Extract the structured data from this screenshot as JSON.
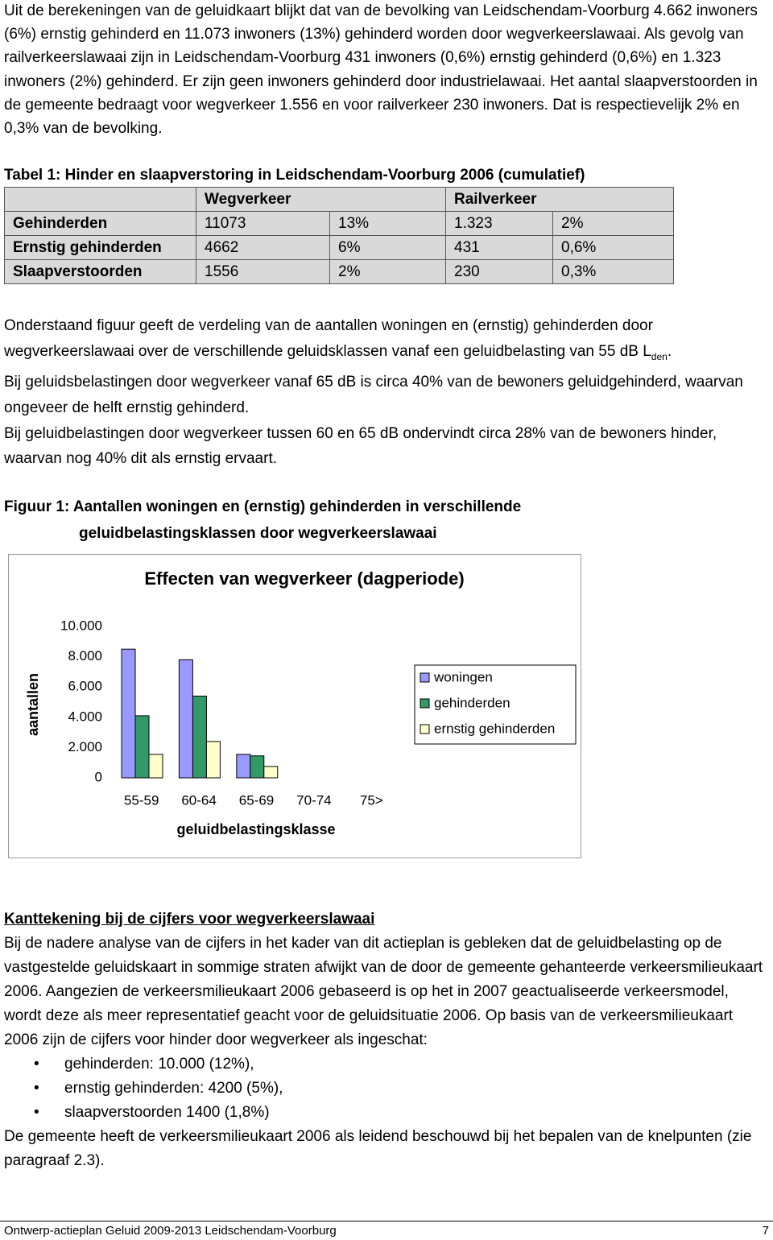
{
  "intro": "Uit de berekeningen van de geluidkaart blijkt dat van de bevolking van Leidschendam-Voorburg 4.662 inwoners (6%) ernstig gehinderd en 11.073 inwoners (13%) gehinderd worden door wegverkeerslawaai. Als gevolg van railverkeerslawaai zijn in Leidschendam-Voorburg 431 inwoners (0,6%) ernstig gehinderd (0,6%) en 1.323 inwoners (2%) gehinderd. Er zijn geen inwoners gehinderd door industrielawaai. Het aantal slaapverstoorden in de gemeente bedraagt voor wegverkeer 1.556 en voor railverkeer 230 inwoners. Dat is respectievelijk 2% en 0,3% van de bevolking.",
  "table": {
    "caption": "Tabel 1: Hinder en slaapverstoring in Leidschendam-Voorburg 2006 (cumulatief)",
    "header": [
      "Wegverkeer",
      "Railverkeer"
    ],
    "rows": [
      [
        "Gehinderden",
        "11073",
        "13%",
        "1.323",
        "2%"
      ],
      [
        "Ernstig gehinderden",
        "4662",
        "6%",
        "431",
        "0,6%"
      ],
      [
        "Slaapverstoorden",
        "1556",
        "2%",
        "230",
        "0,3%"
      ]
    ]
  },
  "description": {
    "text": "Onderstaand figuur geeft de verdeling van de aantallen woningen en (ernstig) gehinderden door wegverkeerslawaai over de verschillende geluidsklassen vanaf een geluidbelasting van 55 dB L",
    "subscript": "den",
    "end": ".",
    "paragraphs": [
      "Bij geluidsbelastingen door wegverkeer vanaf 65 dB is circa 40% van de bewoners geluidgehinderd, waarvan ongeveer de helft ernstig gehinderd.",
      "Bij geluidbelastingen door wegverkeer tussen 60 en 65 dB ondervindt circa 28% van de bewoners hinder, waarvan nog 40% dit als ernstig ervaart."
    ]
  },
  "figure_caption": [
    "Figuur 1: Aantallen woningen en (ernstig) gehinderden in verschillende",
    "geluidbelastingsklassen door wegverkeerslawaai"
  ],
  "chart_data": {
    "type": "bar",
    "title": "Effecten van wegverkeer (dagperiode)",
    "xlabel": "geluidbelastingsklasse",
    "ylabel": "aantallen",
    "categories": [
      "55-59",
      "60-64",
      "65-69",
      "70-74",
      "75>"
    ],
    "series": [
      {
        "name": "woningen",
        "color": "#9999ff",
        "values": [
          8500,
          7800,
          1550,
          0,
          0
        ]
      },
      {
        "name": "gehinderden",
        "color": "#339966",
        "values": [
          4100,
          5400,
          1450,
          0,
          0
        ]
      },
      {
        "name": "ernstig gehinderden",
        "color": "#ffffcc",
        "values": [
          1550,
          2400,
          750,
          0,
          0
        ]
      }
    ],
    "ylim": [
      0,
      10000
    ],
    "yticks": [
      0,
      {
        "value": 2000,
        "label": "2.000"
      },
      {
        "value": 4000,
        "label": "4.000"
      },
      {
        "value": 6000,
        "label": "6.000"
      },
      {
        "value": 8000,
        "label": "8.000"
      },
      {
        "value": 10000,
        "label": "10.000"
      }
    ],
    "grid": false,
    "legend": "right"
  },
  "note": {
    "heading": "Kanttekening bij de cijfers voor wegverkeerslawaai",
    "text": "Bij de nadere analyse van de cijfers in het kader van dit actieplan is gebleken dat de geluidbelasting op de vastgestelde geluidskaart in sommige straten afwijkt van de door de gemeente gehanteerde verkeersmilieukaart 2006. Aangezien de verkeersmilieukaart 2006 gebaseerd is op het in 2007 geactualiseerde verkeersmodel, wordt deze als meer representatief geacht voor de geluidsituatie 2006. Op basis van de verkeersmilieukaart 2006 zijn de cijfers voor hinder door wegverkeer als ingeschat:",
    "bullets": [
      "gehinderden: 10.000 (12%),",
      "ernstig gehinderden: 4200 (5%),",
      "slaapverstoorden 1400 (1,8%)"
    ],
    "closing": "De gemeente heeft de verkeersmilieukaart 2006 als leidend beschouwd bij het bepalen van de knelpunten (zie paragraaf 2.3)."
  },
  "footer": {
    "left": "Ontwerp-actieplan Geluid 2009-2013 Leidschendam-Voorburg",
    "page": "7"
  }
}
